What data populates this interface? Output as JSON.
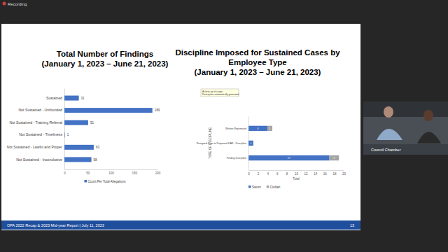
{
  "chart_data": [
    {
      "type": "bar",
      "orientation": "horizontal",
      "title": "Total Number of Findings",
      "subtitle": "(January 1, 2023 – June 21, 2023)",
      "categories": [
        "Sustained",
        "Not Sustained - Unfounded",
        "Not Sustained - Training Referral",
        "Not Sustained - Timeliness",
        "Not Sustained - Lawful and Proper",
        "Not Sustained - Inconclusive"
      ],
      "series": [
        {
          "name": "Count Per Total Allegations",
          "color": "#4472c4",
          "values": [
            31,
            189,
            51,
            1,
            63,
            58
          ]
        }
      ],
      "xlim": [
        0,
        200
      ],
      "xticks": [
        0,
        50,
        100,
        150,
        200
      ],
      "grid": false,
      "legend": "bottom",
      "data_labels": true
    },
    {
      "type": "bar",
      "orientation": "horizontal",
      "stacked": true,
      "title": "Discipline Imposed for Sustained Cases by Employee Type",
      "subtitle": "(January 1, 2023 – June 21, 2023)",
      "x_label": "Total",
      "y_label": "TYPE OF DISCIPLINE",
      "annotations": [
        "A close-up of a sign",
        "Description automatically generated"
      ],
      "categories": [
        "Written Reprimand",
        "Resigned Prior to Proposed DAR - Discipline",
        "Finding Discipline"
      ],
      "series": [
        {
          "name": "Sworn",
          "color": "#4472c4",
          "values": [
            4,
            1,
            17
          ]
        },
        {
          "name": "Civilian",
          "color": "#a5a5a5",
          "values": [
            1,
            null,
            2
          ]
        }
      ],
      "xlim": [
        0,
        20
      ],
      "xticks": [
        0,
        2,
        4,
        6,
        8,
        10,
        12,
        14,
        16,
        18,
        20
      ],
      "grid": false,
      "legend": "bottom",
      "data_labels": true
    }
  ],
  "screen": {
    "recording": "Recording",
    "video_label": "Council Chamber"
  },
  "slide": {
    "footer": "OPA 2022 Recap & 2023 Mid-year Report | July 11, 2023",
    "page": "13"
  }
}
